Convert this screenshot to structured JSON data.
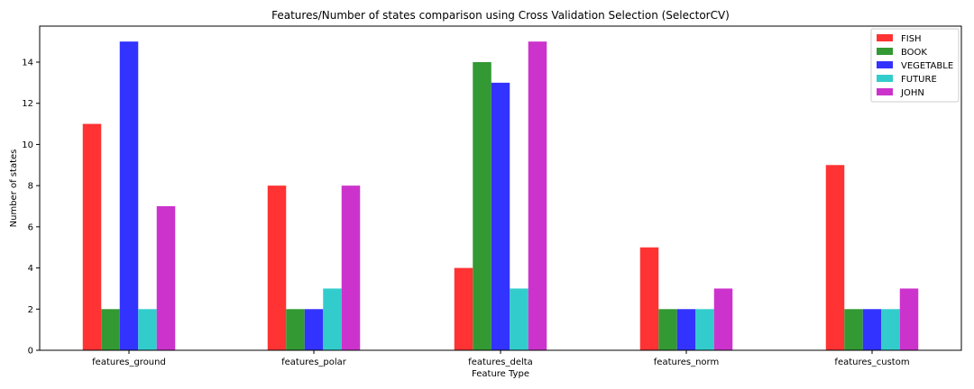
{
  "chart_data": {
    "type": "bar",
    "title": "Features/Number of states comparison using Cross Validation Selection (SelectorCV)",
    "xlabel": "Feature Type",
    "ylabel": "Number of states",
    "ylim": [
      0,
      15.75
    ],
    "yticks": [
      0,
      2,
      4,
      6,
      8,
      10,
      12,
      14
    ],
    "grid": false,
    "legend_position": "top-right",
    "categories": [
      "features_ground",
      "features_polar",
      "features_delta",
      "features_norm",
      "features_custom"
    ],
    "series": [
      {
        "name": "FISH",
        "color": "#ff3333",
        "values": [
          11,
          8,
          4,
          5,
          9
        ]
      },
      {
        "name": "BOOK",
        "color": "#339933",
        "values": [
          2,
          2,
          14,
          2,
          2
        ]
      },
      {
        "name": "VEGETABLE",
        "color": "#3333ff",
        "values": [
          15,
          2,
          13,
          2,
          2
        ]
      },
      {
        "name": "FUTURE",
        "color": "#33cccc",
        "values": [
          2,
          3,
          3,
          2,
          2
        ]
      },
      {
        "name": "JOHN",
        "color": "#cc33cc",
        "values": [
          7,
          8,
          15,
          3,
          3
        ]
      }
    ]
  }
}
